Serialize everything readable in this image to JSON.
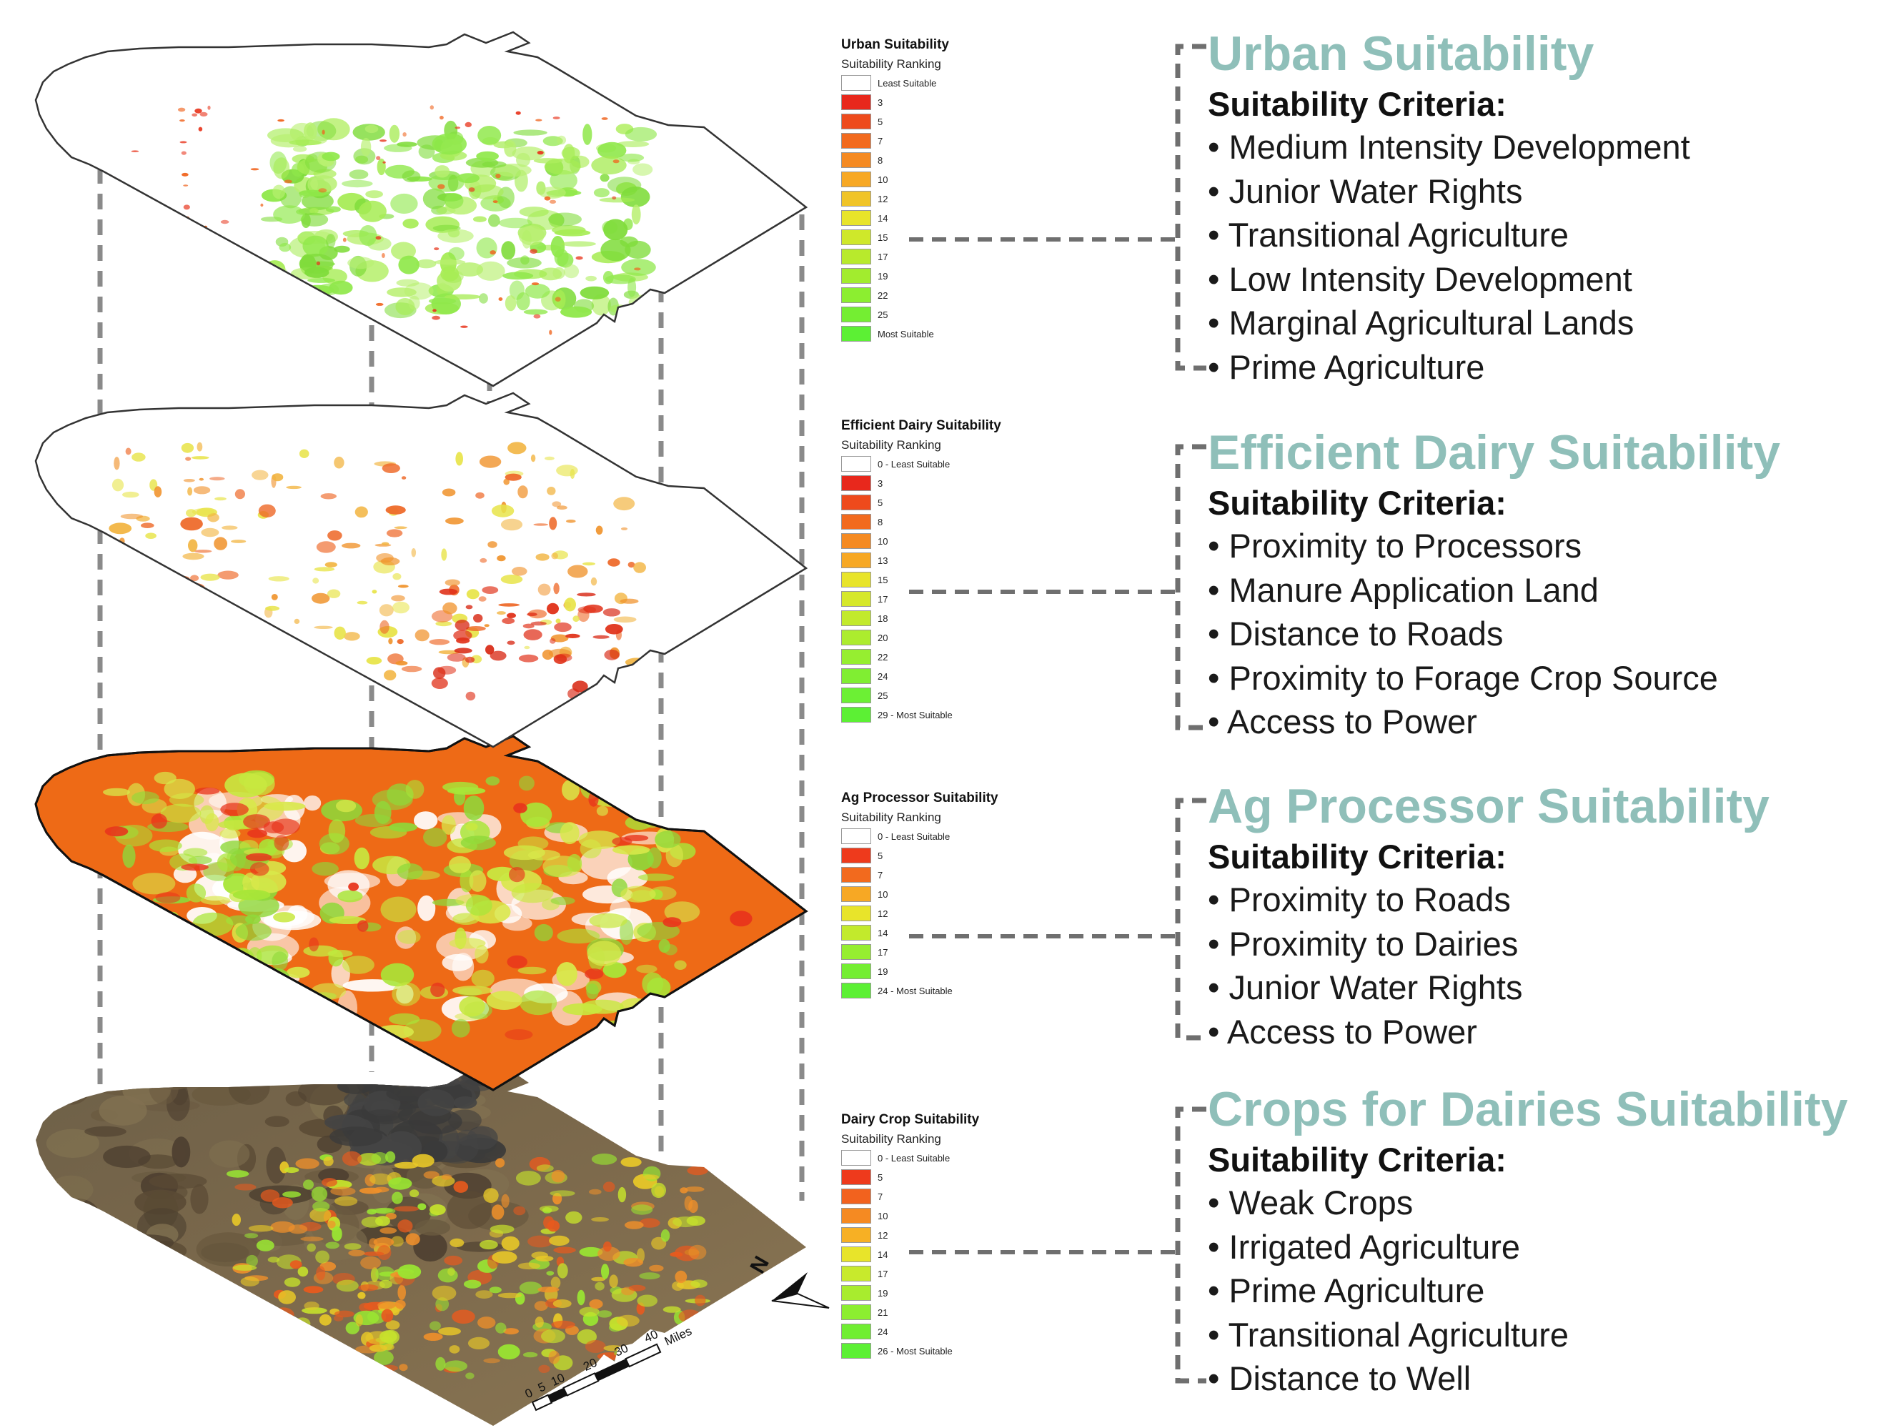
{
  "layers": [
    {
      "legend": {
        "title": "Urban Suitability",
        "subtitle": "Suitability Ranking",
        "items": [
          {
            "label": "Least Suitable",
            "color": "#ffffff"
          },
          {
            "label": "3",
            "color": "#e8281c"
          },
          {
            "label": "5",
            "color": "#ee4a1c"
          },
          {
            "label": "7",
            "color": "#f26a1e"
          },
          {
            "label": "8",
            "color": "#f58a22"
          },
          {
            "label": "10",
            "color": "#f7a824"
          },
          {
            "label": "12",
            "color": "#f0c428"
          },
          {
            "label": "14",
            "color": "#e8e42a"
          },
          {
            "label": "15",
            "color": "#cfe82a"
          },
          {
            "label": "17",
            "color": "#b8ea2c"
          },
          {
            "label": "19",
            "color": "#a2ec2e"
          },
          {
            "label": "22",
            "color": "#8cee30"
          },
          {
            "label": "25",
            "color": "#74ee32"
          },
          {
            "label": "Most Suitable",
            "color": "#5cf034"
          }
        ]
      },
      "panel": {
        "title": "Urban Suitability",
        "subtitle": "Suitability Criteria:",
        "criteria": [
          "Medium Intensity Development",
          "Junior Water Rights",
          "Transitional Agriculture",
          "Low Intensity Development",
          "Marginal Agricultural Lands",
          "Prime Agriculture"
        ]
      }
    },
    {
      "legend": {
        "title": "Efficient Dairy Suitability",
        "subtitle": "Suitability Ranking",
        "items": [
          {
            "label": "0 - Least Suitable",
            "color": "#ffffff"
          },
          {
            "label": "3",
            "color": "#e8281c"
          },
          {
            "label": "5",
            "color": "#ee4a1c"
          },
          {
            "label": "8",
            "color": "#f26a1e"
          },
          {
            "label": "10",
            "color": "#f58a22"
          },
          {
            "label": "13",
            "color": "#f7a824"
          },
          {
            "label": "15",
            "color": "#e8e42a"
          },
          {
            "label": "17",
            "color": "#d6e82a"
          },
          {
            "label": "18",
            "color": "#c2ea2c"
          },
          {
            "label": "20",
            "color": "#acec2e"
          },
          {
            "label": "22",
            "color": "#96ee30"
          },
          {
            "label": "24",
            "color": "#80ee32"
          },
          {
            "label": "25",
            "color": "#6cf034"
          },
          {
            "label": "29 - Most Suitable",
            "color": "#5cf034"
          }
        ]
      },
      "panel": {
        "title": "Efficient Dairy Suitability",
        "subtitle": "Suitability Criteria:",
        "criteria": [
          "Proximity to Processors",
          "Manure Application Land",
          "Distance to Roads",
          "Proximity to Forage Crop Source",
          "Access to Power"
        ]
      }
    },
    {
      "legend": {
        "title": "Ag Processor Suitability",
        "subtitle": "Suitability Ranking",
        "items": [
          {
            "label": "0 - Least Suitable",
            "color": "#ffffff"
          },
          {
            "label": "5",
            "color": "#ee3a1c"
          },
          {
            "label": "7",
            "color": "#f26a1e"
          },
          {
            "label": "10",
            "color": "#f7a824"
          },
          {
            "label": "12",
            "color": "#e8e42a"
          },
          {
            "label": "14",
            "color": "#c2ea2c"
          },
          {
            "label": "17",
            "color": "#96ee30"
          },
          {
            "label": "19",
            "color": "#74ee32"
          },
          {
            "label": "24 - Most Suitable",
            "color": "#5cf034"
          }
        ]
      },
      "panel": {
        "title": "Ag Processor Suitability",
        "subtitle": "Suitability Criteria:",
        "criteria": [
          "Proximity to Roads",
          "Proximity to Dairies",
          "Junior Water Rights",
          "Access to Power"
        ]
      }
    },
    {
      "legend": {
        "title": "Dairy Crop Suitability",
        "subtitle": "Suitability Ranking",
        "items": [
          {
            "label": "0 - Least Suitable",
            "color": "#ffffff"
          },
          {
            "label": "5",
            "color": "#ee3a1c"
          },
          {
            "label": "7",
            "color": "#f2621e"
          },
          {
            "label": "10",
            "color": "#f58a22"
          },
          {
            "label": "12",
            "color": "#f7b024"
          },
          {
            "label": "14",
            "color": "#e8e42a"
          },
          {
            "label": "17",
            "color": "#c8ea2c"
          },
          {
            "label": "19",
            "color": "#a8ec2e"
          },
          {
            "label": "21",
            "color": "#8cee30"
          },
          {
            "label": "24",
            "color": "#70ee32"
          },
          {
            "label": "26 - Most Suitable",
            "color": "#5cf034"
          }
        ]
      },
      "panel": {
        "title": "Crops for Dairies Suitability",
        "subtitle": "Suitability Criteria:",
        "criteria": [
          "Weak Crops",
          "Irrigated Agriculture",
          "Prime Agriculture",
          "Transitional Agriculture",
          "Distance to Well"
        ]
      }
    }
  ],
  "scale_bar": {
    "ticks": [
      "0",
      "5",
      "10",
      "20",
      "30",
      "40"
    ],
    "unit": "Miles"
  },
  "north_arrow": {
    "label": "N"
  }
}
